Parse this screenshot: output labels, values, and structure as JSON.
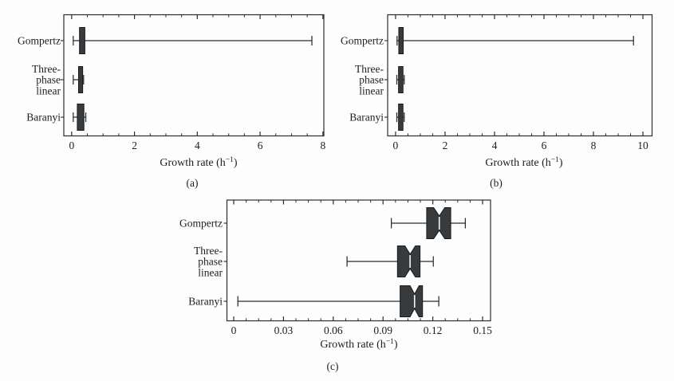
{
  "figure": {
    "background": "#fdfdfd",
    "text_color": "#1e1e1e",
    "line_color": "#2c2c2c",
    "box_fill": "#383b3e",
    "box_stroke": "#17191b",
    "median_gap_color": "#f6f6f6"
  },
  "chart_data": {
    "type": "boxplot",
    "orientation": "horizontal",
    "grid": false,
    "legend": "none",
    "panels": [
      {
        "id": "a",
        "caption": "(a)",
        "xlabel_main": "Growth rate (h",
        "xlabel_sup": "−1",
        "xlabel_end": ")",
        "xlim": [
          -0.25,
          8.03
        ],
        "xticks": [
          0,
          2,
          4,
          6,
          8
        ],
        "xtick_labels": [
          "0",
          "2",
          "4",
          "6",
          "8"
        ],
        "minor_step": 0.5,
        "notched": false,
        "categories": [
          [
            "Gompertz"
          ],
          [
            "Three-",
            "phase",
            "linear"
          ],
          [
            "Baranyi"
          ]
        ],
        "boxes": [
          {
            "label": "Gompertz",
            "whisker_lo": 0.05,
            "q1": 0.25,
            "median": 0.33,
            "q3": 0.42,
            "whisker_hi": 7.65
          },
          {
            "label": "Three-phase linear",
            "whisker_lo": 0.05,
            "q1": 0.22,
            "median": 0.28,
            "q3": 0.35,
            "whisker_hi": 0.38
          },
          {
            "label": "Baranyi",
            "whisker_lo": 0.05,
            "q1": 0.18,
            "median": 0.29,
            "q3": 0.39,
            "whisker_hi": 0.45
          }
        ]
      },
      {
        "id": "b",
        "caption": "(b)",
        "xlabel_main": "Growth rate (h",
        "xlabel_sup": "−1",
        "xlabel_end": ")",
        "xlim": [
          -0.32,
          10.37
        ],
        "xticks": [
          0,
          2,
          4,
          6,
          8,
          10
        ],
        "xtick_labels": [
          "0",
          "2",
          "4",
          "6",
          "8",
          "10"
        ],
        "minor_step": 0.5,
        "notched": false,
        "categories": [
          [
            "Gompertz"
          ],
          [
            "Three-",
            "phase",
            "linear"
          ],
          [
            "Baranyi"
          ]
        ],
        "boxes": [
          {
            "label": "Gompertz",
            "whisker_lo": 0.06,
            "q1": 0.13,
            "median": 0.2,
            "q3": 0.31,
            "whisker_hi": 9.62
          },
          {
            "label": "Three-phase linear",
            "whisker_lo": 0.05,
            "q1": 0.12,
            "median": 0.2,
            "q3": 0.3,
            "whisker_hi": 0.35
          },
          {
            "label": "Baranyi",
            "whisker_lo": 0.05,
            "q1": 0.12,
            "median": 0.2,
            "q3": 0.3,
            "whisker_hi": 0.35
          }
        ]
      },
      {
        "id": "c",
        "caption": "(c)",
        "xlabel_main": "Growth rate (h",
        "xlabel_sup": "−1",
        "xlabel_end": ")",
        "xlim": [
          -0.0041,
          0.1548
        ],
        "xticks": [
          0,
          0.03,
          0.06,
          0.09,
          0.12,
          0.15
        ],
        "xtick_labels": [
          "0",
          "0.03",
          "0.06",
          "0.09",
          "0.12",
          "0.15"
        ],
        "minor_step": 0.0075,
        "notched": true,
        "categories": [
          [
            "Gompertz"
          ],
          [
            "Three-",
            "phase",
            "linear"
          ],
          [
            "Baranyi"
          ]
        ],
        "boxes": [
          {
            "label": "Gompertz",
            "whisker_lo": 0.095,
            "q1": 0.1163,
            "median": 0.1239,
            "q3": 0.1308,
            "whisker_hi": 0.1396,
            "notch_lo": 0.1205,
            "notch_hi": 0.1272
          },
          {
            "label": "Three-phase linear",
            "whisker_lo": 0.0683,
            "q1": 0.0987,
            "median": 0.1063,
            "q3": 0.1123,
            "whisker_hi": 0.1203,
            "notch_lo": 0.1032,
            "notch_hi": 0.1095
          },
          {
            "label": "Baranyi",
            "whisker_lo": 0.0025,
            "q1": 0.1003,
            "median": 0.109,
            "q3": 0.1138,
            "whisker_hi": 0.1236,
            "notch_lo": 0.1063,
            "notch_hi": 0.1117
          }
        ]
      }
    ]
  }
}
